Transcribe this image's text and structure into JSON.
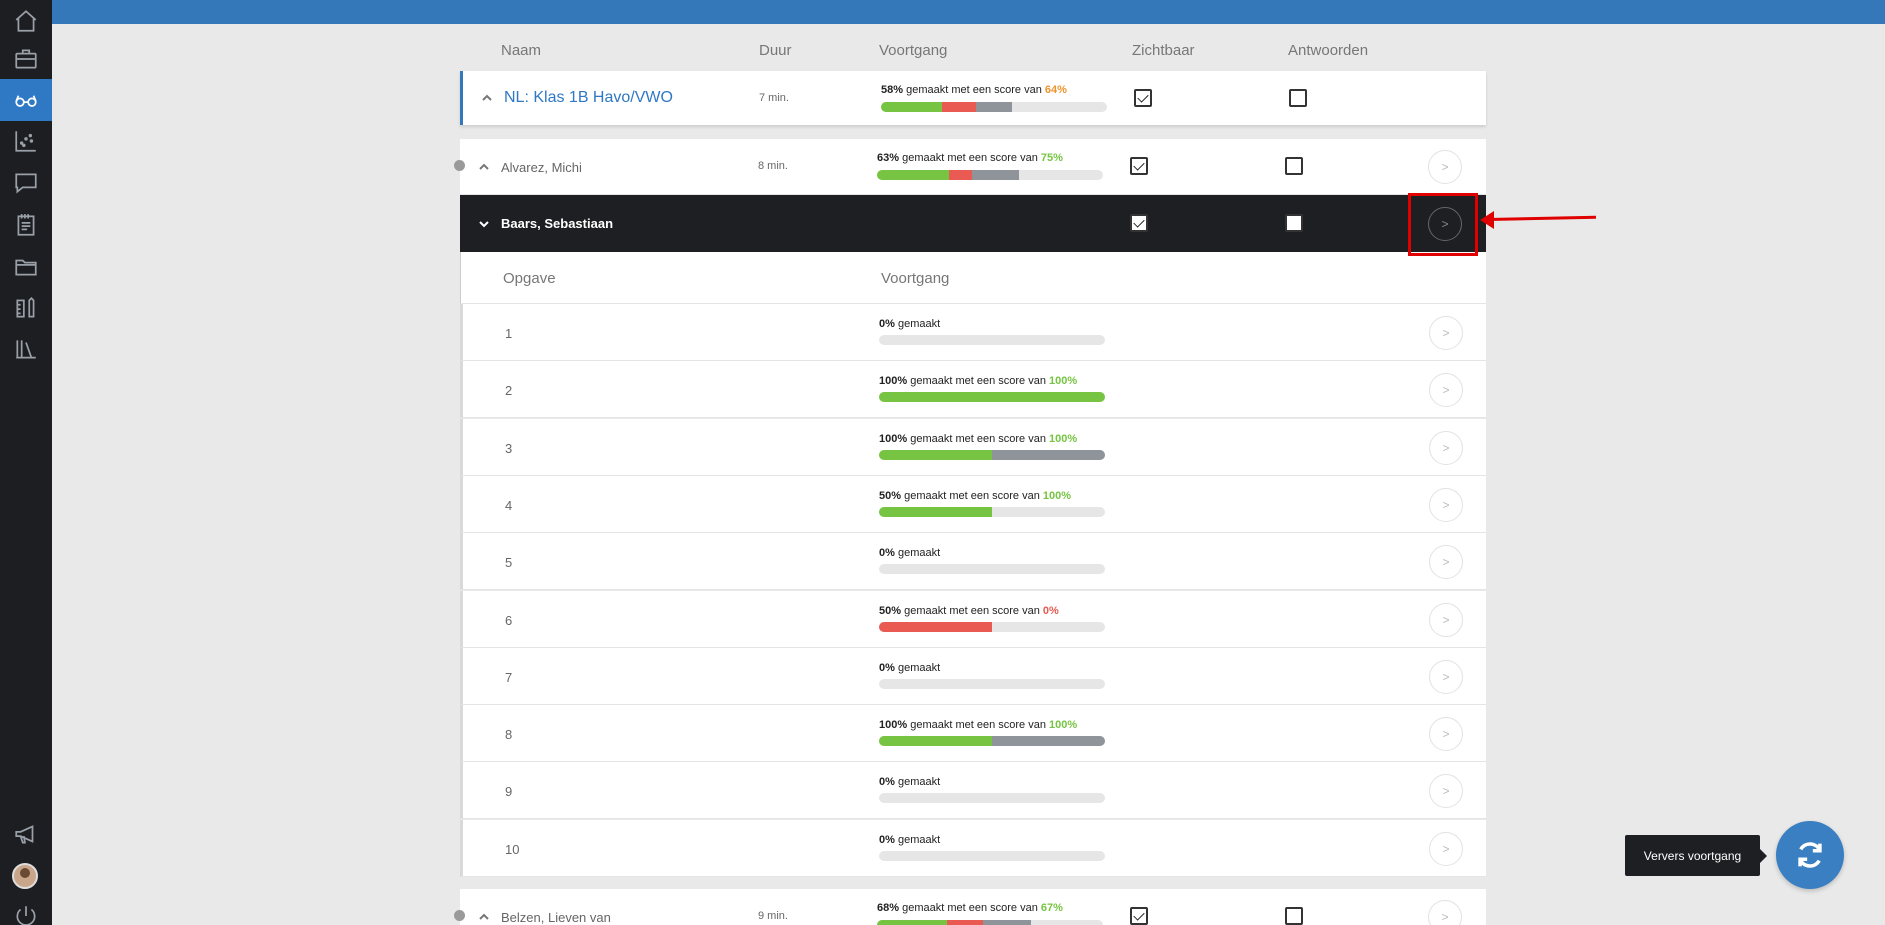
{
  "colors": {
    "accent": "#2f78c4",
    "green": "#76c442",
    "red": "#e85a52",
    "gray": "#8f949b",
    "orange": "#f0932b",
    "annotation": "#e10000"
  },
  "sidebar": {
    "items": [
      {
        "icon": "home-icon"
      },
      {
        "icon": "briefcase-icon"
      },
      {
        "icon": "glasses-icon",
        "active": true
      },
      {
        "icon": "scatter-chart-icon"
      },
      {
        "icon": "chat-icon"
      },
      {
        "icon": "clipboard-icon"
      },
      {
        "icon": "folder-icon"
      },
      {
        "icon": "tools-icon"
      },
      {
        "icon": "library-icon"
      },
      {
        "icon": "megaphone-icon"
      },
      {
        "icon": "avatar"
      },
      {
        "icon": "power-icon"
      }
    ]
  },
  "table": {
    "headers": {
      "name": "Naam",
      "duration": "Duur",
      "progress": "Voortgang",
      "visible": "Zichtbaar",
      "answers": "Antwoorden"
    }
  },
  "class_row": {
    "name": "NL: Klas 1B Havo/VWO",
    "duration": "7 min.",
    "progress_pct": "58%",
    "progress_mid": "gemaakt met een score van",
    "score": "64%",
    "bar": [
      {
        "color": "#76c442",
        "frac": 0.27
      },
      {
        "color": "#e85a52",
        "frac": 0.15
      },
      {
        "color": "#8f949b",
        "frac": 0.16
      }
    ],
    "visible": true,
    "answers": false
  },
  "students": [
    {
      "name": "Alvarez, Michi",
      "duration": "8 min.",
      "progress_pct": "63%",
      "progress_mid": "gemaakt met een score van",
      "score": "75%",
      "bar": [
        {
          "color": "#76c442",
          "frac": 0.32
        },
        {
          "color": "#e85a52",
          "frac": 0.1
        },
        {
          "color": "#8f949b",
          "frac": 0.21
        }
      ],
      "visible": true,
      "answers": false
    },
    {
      "name": "Baars, Sebastiaan",
      "visible": true,
      "answers": false,
      "expanded": true
    },
    {
      "name": "Belzen, Lieven van",
      "duration": "9 min.",
      "progress_pct": "68%",
      "progress_mid": "gemaakt met een score van",
      "score": "67%",
      "bar": [
        {
          "color": "#76c442",
          "frac": 0.31
        },
        {
          "color": "#e85a52",
          "frac": 0.16
        },
        {
          "color": "#8f949b",
          "frac": 0.21
        }
      ],
      "visible": true,
      "answers": false
    }
  ],
  "detail": {
    "headers": {
      "task": "Opgave",
      "progress": "Voortgang"
    },
    "rows": [
      {
        "num": "1",
        "pct": "0%",
        "text": "gemaakt",
        "score": "",
        "score_color": "",
        "bar": []
      },
      {
        "num": "2",
        "pct": "100%",
        "text": "gemaakt met een score van",
        "score": "100%",
        "score_color": "green",
        "bar": [
          {
            "color": "#76c442",
            "frac": 1.0
          }
        ]
      },
      {
        "num": "3",
        "pct": "100%",
        "text": "gemaakt met een score van",
        "score": "100%",
        "score_color": "green",
        "bar": [
          {
            "color": "#76c442",
            "frac": 0.5
          },
          {
            "color": "#8f949b",
            "frac": 0.5
          }
        ]
      },
      {
        "num": "4",
        "pct": "50%",
        "text": "gemaakt met een score van",
        "score": "100%",
        "score_color": "green",
        "bar": [
          {
            "color": "#76c442",
            "frac": 0.5
          }
        ]
      },
      {
        "num": "5",
        "pct": "0%",
        "text": "gemaakt",
        "score": "",
        "score_color": "",
        "bar": []
      },
      {
        "num": "6",
        "pct": "50%",
        "text": "gemaakt met een score van",
        "score": "0%",
        "score_color": "red",
        "bar": [
          {
            "color": "#e85a52",
            "frac": 0.5
          }
        ]
      },
      {
        "num": "7",
        "pct": "0%",
        "text": "gemaakt",
        "score": "",
        "score_color": "",
        "bar": []
      },
      {
        "num": "8",
        "pct": "100%",
        "text": "gemaakt met een score van",
        "score": "100%",
        "score_color": "green",
        "bar": [
          {
            "color": "#76c442",
            "frac": 0.5
          },
          {
            "color": "#8f949b",
            "frac": 0.5
          }
        ]
      },
      {
        "num": "9",
        "pct": "0%",
        "text": "gemaakt",
        "score": "",
        "score_color": "",
        "bar": []
      },
      {
        "num": "10",
        "pct": "0%",
        "text": "gemaakt",
        "score": "",
        "score_color": "",
        "bar": []
      }
    ]
  },
  "refresh": {
    "tooltip": "Ververs voortgang",
    "icon": "refresh-icon"
  }
}
